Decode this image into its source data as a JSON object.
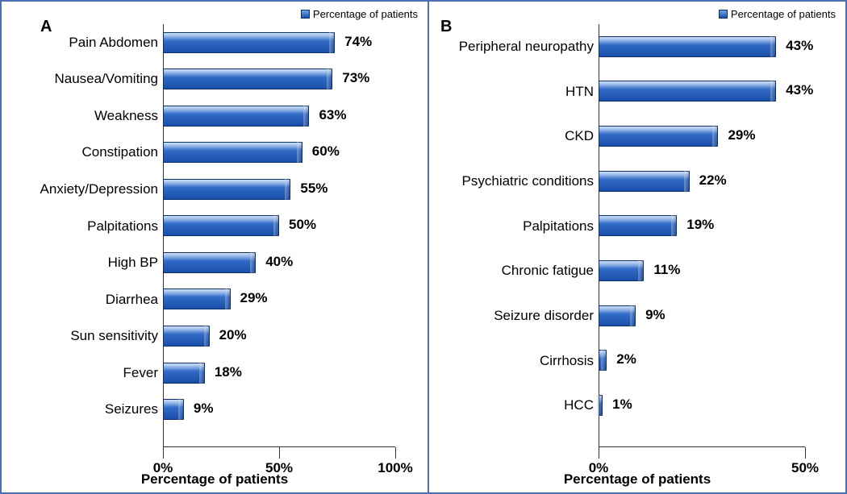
{
  "colors": {
    "border": "#4a6fb3",
    "bar_gradient_top": "#6fa3e8",
    "bar_gradient_mid": "#2f68c4",
    "bar_gradient_bottom": "#1a4fa8",
    "bar_border": "#0a2f6b",
    "axis": "#333333",
    "background": "#ffffff",
    "text": "#000000"
  },
  "typography": {
    "font_family": "Arial, Helvetica, sans-serif",
    "panel_label_fontsize": 20,
    "category_label_fontsize": 17,
    "value_label_fontsize": 17,
    "tick_fontsize": 17,
    "xlabel_fontsize": 17,
    "legend_fontsize": 13
  },
  "legend_text": "Percentage of patients",
  "x_axis_label": "Percentage of patients",
  "panel_a": {
    "label": "A",
    "type": "bar-horizontal",
    "xmax": 100,
    "ticks": [
      {
        "pos": 0,
        "label": "0%"
      },
      {
        "pos": 50,
        "label": "50%"
      },
      {
        "pos": 100,
        "label": "100%"
      }
    ],
    "bars": [
      {
        "label": "Pain Abdomen",
        "value": 74,
        "display": "74%"
      },
      {
        "label": "Nausea/Vomiting",
        "value": 73,
        "display": "73%"
      },
      {
        "label": "Weakness",
        "value": 63,
        "display": "63%"
      },
      {
        "label": "Constipation",
        "value": 60,
        "display": "60%"
      },
      {
        "label": "Anxiety/Depression",
        "value": 55,
        "display": "55%"
      },
      {
        "label": "Palpitations",
        "value": 50,
        "display": "50%"
      },
      {
        "label": "High BP",
        "value": 40,
        "display": "40%"
      },
      {
        "label": "Diarrhea",
        "value": 29,
        "display": "29%"
      },
      {
        "label": "Sun sensitivity",
        "value": 20,
        "display": "20%"
      },
      {
        "label": "Fever",
        "value": 18,
        "display": "18%"
      },
      {
        "label": "Seizures",
        "value": 9,
        "display": "9%"
      }
    ]
  },
  "panel_b": {
    "label": "B",
    "type": "bar-horizontal",
    "xmax": 50,
    "ticks": [
      {
        "pos": 0,
        "label": "0%"
      },
      {
        "pos": 50,
        "label": "50%"
      }
    ],
    "bars": [
      {
        "label": "Peripheral neuropathy",
        "value": 43,
        "display": "43%"
      },
      {
        "label": "HTN",
        "value": 43,
        "display": "43%"
      },
      {
        "label": "CKD",
        "value": 29,
        "display": "29%"
      },
      {
        "label": "Psychiatric conditions",
        "value": 22,
        "display": "22%"
      },
      {
        "label": "Palpitations",
        "value": 19,
        "display": "19%"
      },
      {
        "label": "Chronic fatigue",
        "value": 11,
        "display": "11%"
      },
      {
        "label": "Seizure disorder",
        "value": 9,
        "display": "9%"
      },
      {
        "label": "Cirrhosis",
        "value": 2,
        "display": "2%"
      },
      {
        "label": "HCC",
        "value": 1,
        "display": "1%"
      }
    ]
  }
}
